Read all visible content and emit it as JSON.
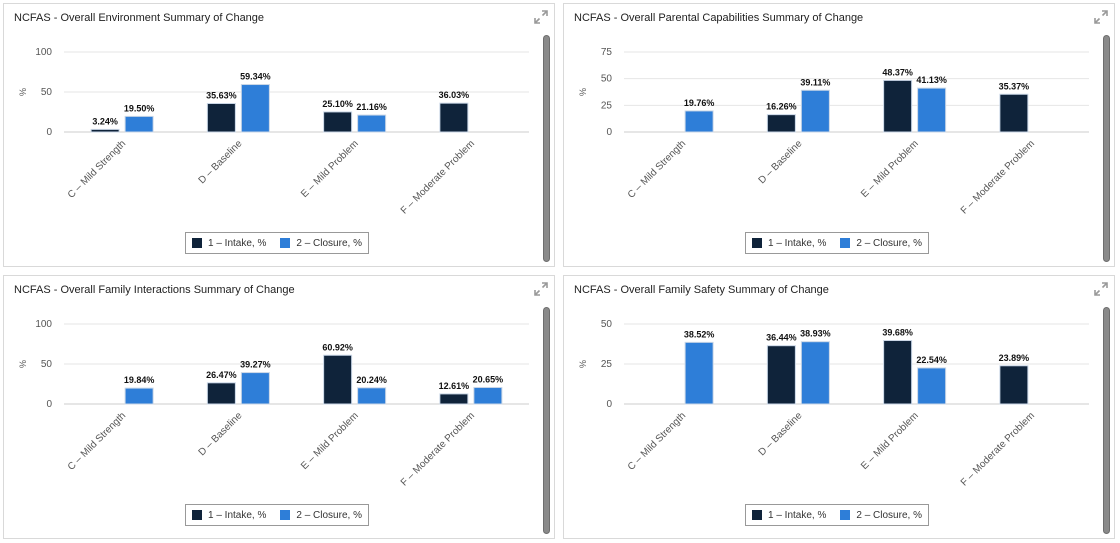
{
  "colors": {
    "intake": "#0f233a",
    "closure": "#2e7ed8",
    "grid": "#e6e6e6"
  },
  "icons": {
    "expand": "expand-icon"
  },
  "chart_data": [
    {
      "type": "bar",
      "title": "NCFAS - Overall Environment Summary of Change",
      "ylabel": "%",
      "ylim": [
        0,
        100
      ],
      "yticks": [
        0,
        50,
        100
      ],
      "categories": [
        "C – Mild Strength",
        "D – Baseline",
        "E – Mild Problem",
        "F – Moderate Problem"
      ],
      "series": [
        {
          "name": "1 – Intake, %",
          "values": [
            3.24,
            35.63,
            25.1,
            36.03
          ],
          "labels": [
            "3.24%",
            "35.63%",
            "25.10%",
            "36.03%"
          ]
        },
        {
          "name": "2 – Closure, %",
          "values": [
            19.5,
            59.34,
            21.16,
            null
          ],
          "labels": [
            "19.50%",
            "59.34%",
            "21.16%",
            null
          ]
        }
      ],
      "legend": "bottom-center",
      "grid": true
    },
    {
      "type": "bar",
      "title": "NCFAS - Overall Parental Capabilities Summary of Change",
      "ylabel": "%",
      "ylim": [
        0,
        75
      ],
      "yticks": [
        0,
        25,
        50,
        75
      ],
      "categories": [
        "C – Mild Strength",
        "D – Baseline",
        "E – Mild Problem",
        "F – Moderate Problem"
      ],
      "series": [
        {
          "name": "1 – Intake, %",
          "values": [
            null,
            16.26,
            48.37,
            35.37
          ],
          "labels": [
            null,
            "16.26%",
            "48.37%",
            "35.37%"
          ]
        },
        {
          "name": "2 – Closure, %",
          "values": [
            19.76,
            39.11,
            41.13,
            null
          ],
          "labels": [
            "19.76%",
            "39.11%",
            "41.13%",
            null
          ]
        }
      ],
      "legend": "bottom-center",
      "grid": true
    },
    {
      "type": "bar",
      "title": "NCFAS - Overall Family Interactions Summary of Change",
      "ylabel": "%",
      "ylim": [
        0,
        100
      ],
      "yticks": [
        0,
        50,
        100
      ],
      "categories": [
        "C – Mild Strength",
        "D – Baseline",
        "E – Mild Problem",
        "F – Moderate Problem"
      ],
      "series": [
        {
          "name": "1 – Intake, %",
          "values": [
            null,
            26.47,
            60.92,
            12.61
          ],
          "labels": [
            null,
            "26.47%",
            "60.92%",
            "12.61%"
          ]
        },
        {
          "name": "2 – Closure, %",
          "values": [
            19.84,
            39.27,
            20.24,
            20.65
          ],
          "labels": [
            "19.84%",
            "39.27%",
            "20.24%",
            "20.65%"
          ]
        }
      ],
      "legend": "bottom-center",
      "grid": true
    },
    {
      "type": "bar",
      "title": "NCFAS - Overall Family Safety Summary of Change",
      "ylabel": "%",
      "ylim": [
        0,
        50
      ],
      "yticks": [
        0,
        25,
        50
      ],
      "categories": [
        "C – Mild Strength",
        "D – Baseline",
        "E – Mild Problem",
        "F – Moderate Problem"
      ],
      "series": [
        {
          "name": "1 – Intake, %",
          "values": [
            null,
            36.44,
            39.68,
            23.89
          ],
          "labels": [
            null,
            "36.44%",
            "39.68%",
            "23.89%"
          ]
        },
        {
          "name": "2 – Closure, %",
          "values": [
            38.52,
            38.93,
            22.54,
            null
          ],
          "labels": [
            "38.52%",
            "38.93%",
            "22.54%",
            null
          ]
        }
      ],
      "legend": "bottom-center",
      "grid": true
    }
  ]
}
